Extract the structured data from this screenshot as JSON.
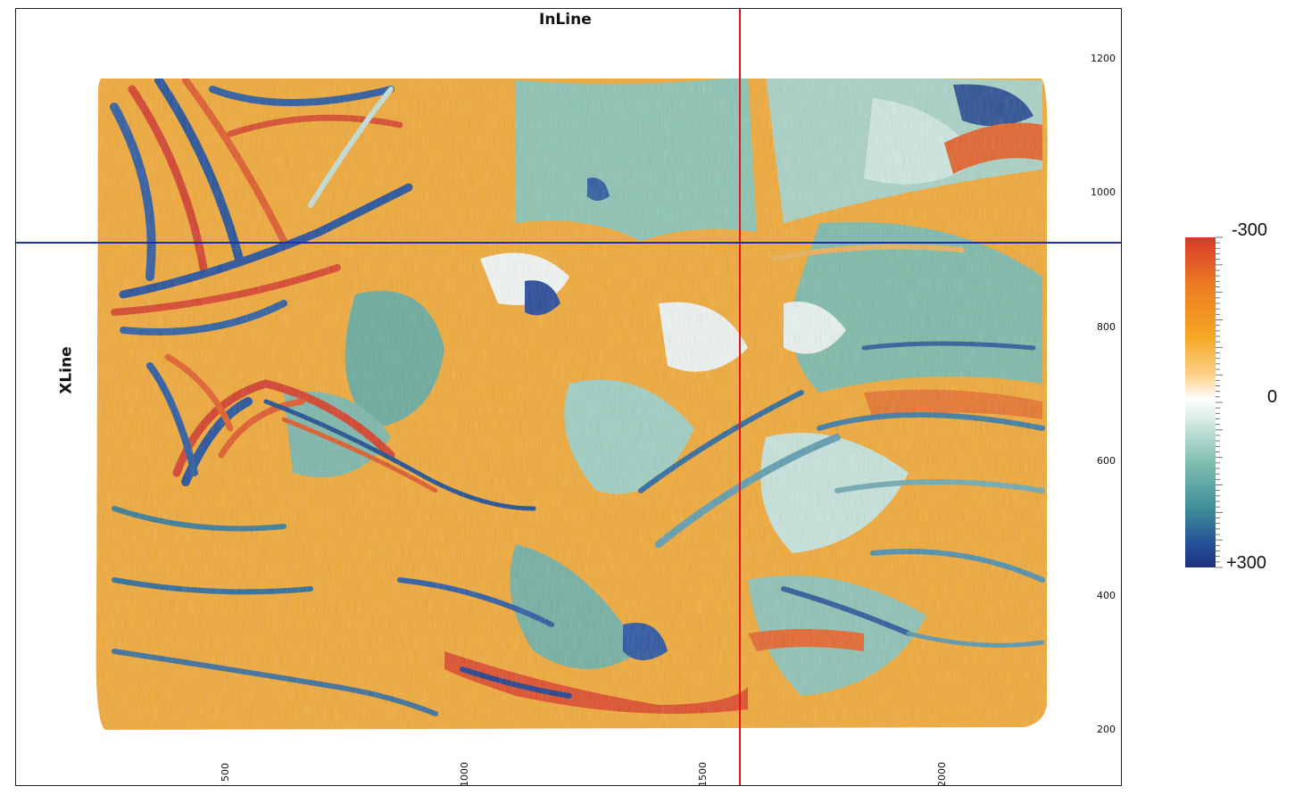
{
  "map": {
    "inline_title": "InLine",
    "xline_title": "XLine",
    "inline_ticks": [
      "500",
      "1000",
      "1500",
      "2000"
    ],
    "xline_ticks": [
      "1200",
      "1000",
      "800",
      "600",
      "400",
      "200"
    ],
    "inline_range": [
      310,
      2430
    ],
    "xline_range": [
      100,
      1260
    ],
    "inline_crosshair": 1580,
    "xline_crosshair": 920,
    "crosshair_colors": {
      "inline": "#e8141a",
      "xline": "#1f2fa8"
    }
  },
  "colorbar": {
    "top_label": "-300",
    "middle_label": "0",
    "bottom_label": "+300",
    "min": -300,
    "max": 300,
    "colors": [
      "#d63a2a",
      "#ee7d22",
      "#f5a623",
      "#fbd28a",
      "#ffffff",
      "#bfe0da",
      "#7fbfae",
      "#3f8f98",
      "#24559a",
      "#1f2f7f"
    ]
  }
}
